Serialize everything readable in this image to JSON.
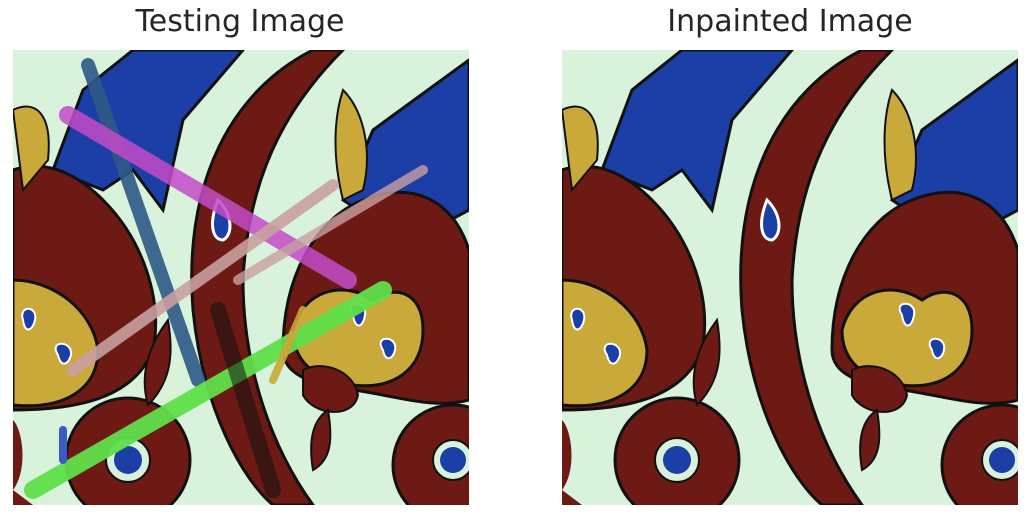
{
  "panels": [
    {
      "title": "Testing Image",
      "image": "tile-pattern-with-colored-scribbles"
    },
    {
      "title": "Inpainted Image",
      "image": "tile-pattern-restored"
    }
  ],
  "colors": {
    "background": "#d9f2dc",
    "maroon": "#6e1a14",
    "blue": "#1b3fa6",
    "gold": "#c9a93a",
    "scribble_magenta": "#c44bc8",
    "scribble_green": "#5fe04a",
    "scribble_teal": "#2f5a86",
    "scribble_pink": "#c8a0a0"
  }
}
